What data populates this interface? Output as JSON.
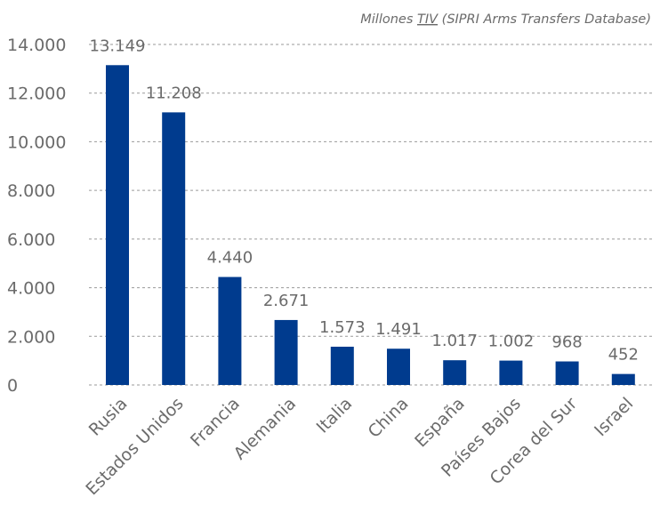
{
  "chart_data": {
    "type": "bar",
    "title": "",
    "note_prefix": "Millones ",
    "note_underlined": "TIV",
    "note_suffix": " (SIPRI Arms Transfers Database)",
    "categories": [
      "Rusia",
      "Estados Unidos",
      "Francia",
      "Alemania",
      "Italia",
      "China",
      "España",
      "Países Bajos",
      "Corea del Sur",
      "Israel"
    ],
    "values": [
      13149,
      11208,
      4440,
      2671,
      1573,
      1491,
      1017,
      1002,
      968,
      452
    ],
    "value_labels": [
      "13.149",
      "11.208",
      "4.440",
      "2.671",
      "1.573",
      "1.491",
      "1.017",
      "1.002",
      "968",
      "452"
    ],
    "ylim": [
      0,
      14000
    ],
    "yticks": [
      0,
      2000,
      4000,
      6000,
      8000,
      10000,
      12000,
      14000
    ],
    "ytick_labels": [
      "0",
      "2.000",
      "4.000",
      "6.000",
      "8.000",
      "10.000",
      "12.000",
      "14.000"
    ],
    "grid": true,
    "bar_color": "#003b8e"
  }
}
